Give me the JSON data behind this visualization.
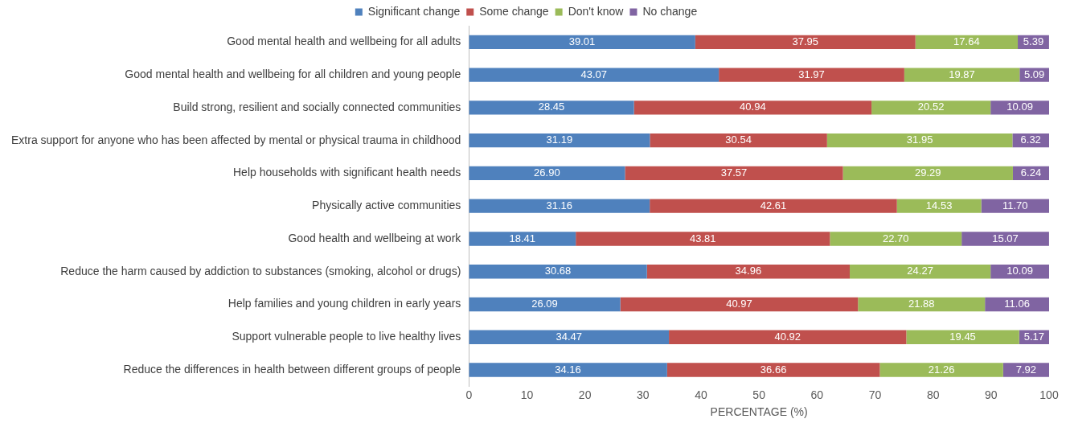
{
  "chart_data": {
    "type": "bar",
    "orientation": "horizontal",
    "stacked": true,
    "xlabel": "PERCENTAGE (%)",
    "legend": "top",
    "grid": false,
    "categories": [
      "Good mental health and wellbeing for all adults",
      "Good mental health and wellbeing for all children and young people",
      "Build strong, resilient and socially connected communities",
      "Extra support for anyone who has been affected by mental or physical trauma in childhood",
      "Help households with significant health needs",
      "Physically active communities",
      "Good health and wellbeing at work",
      "Reduce the harm caused by addiction to substances (smoking, alcohol or drugs)",
      "Help families and young children in early years",
      "Support vulnerable people to live healthy lives",
      "Reduce the differences in health between different groups of people"
    ],
    "xlim": [
      0,
      100
    ],
    "xticks": [
      0,
      10,
      20,
      30,
      40,
      50,
      60,
      70,
      80,
      90,
      100
    ],
    "series": [
      {
        "name": "Significant change",
        "color": "#4f81bd",
        "values": [
          39.01,
          43.07,
          28.45,
          31.19,
          26.9,
          31.16,
          18.41,
          30.68,
          26.09,
          34.47,
          34.16
        ],
        "value_labels": [
          "39.01",
          "43.07",
          "28.45",
          "31.19",
          "26.90",
          "31.16",
          "18.41",
          "30.68",
          "26.09",
          "34.47",
          "34.16"
        ]
      },
      {
        "name": "Some change",
        "color": "#c0504d",
        "values": [
          37.95,
          31.97,
          40.94,
          30.54,
          37.57,
          42.61,
          43.81,
          34.96,
          40.97,
          40.92,
          36.66
        ],
        "value_labels": [
          "37.95",
          "31.97",
          "40.94",
          "30.54",
          "37.57",
          "42.61",
          "43.81",
          "34.96",
          "40.97",
          "40.92",
          "36.66"
        ]
      },
      {
        "name": "Don't know",
        "color": "#9bbb59",
        "values": [
          17.64,
          19.87,
          20.52,
          31.95,
          29.29,
          14.53,
          22.7,
          24.27,
          21.88,
          19.45,
          21.26
        ],
        "value_labels": [
          "17.64",
          "19.87",
          "20.52",
          "31.95",
          "29.29",
          "14.53",
          "22.70",
          "24.27",
          "21.88",
          "19.45",
          "21.26"
        ]
      },
      {
        "name": "No change",
        "color": "#8064a2",
        "values": [
          5.39,
          5.09,
          10.09,
          6.32,
          6.24,
          11.7,
          15.07,
          10.09,
          11.06,
          5.17,
          7.92
        ],
        "value_labels": [
          "5.39",
          "5.09",
          "10.09",
          "6.32",
          "6.24",
          "11.70",
          "15.07",
          "10.09",
          "11.06",
          "5.17",
          "7.92"
        ]
      }
    ]
  }
}
